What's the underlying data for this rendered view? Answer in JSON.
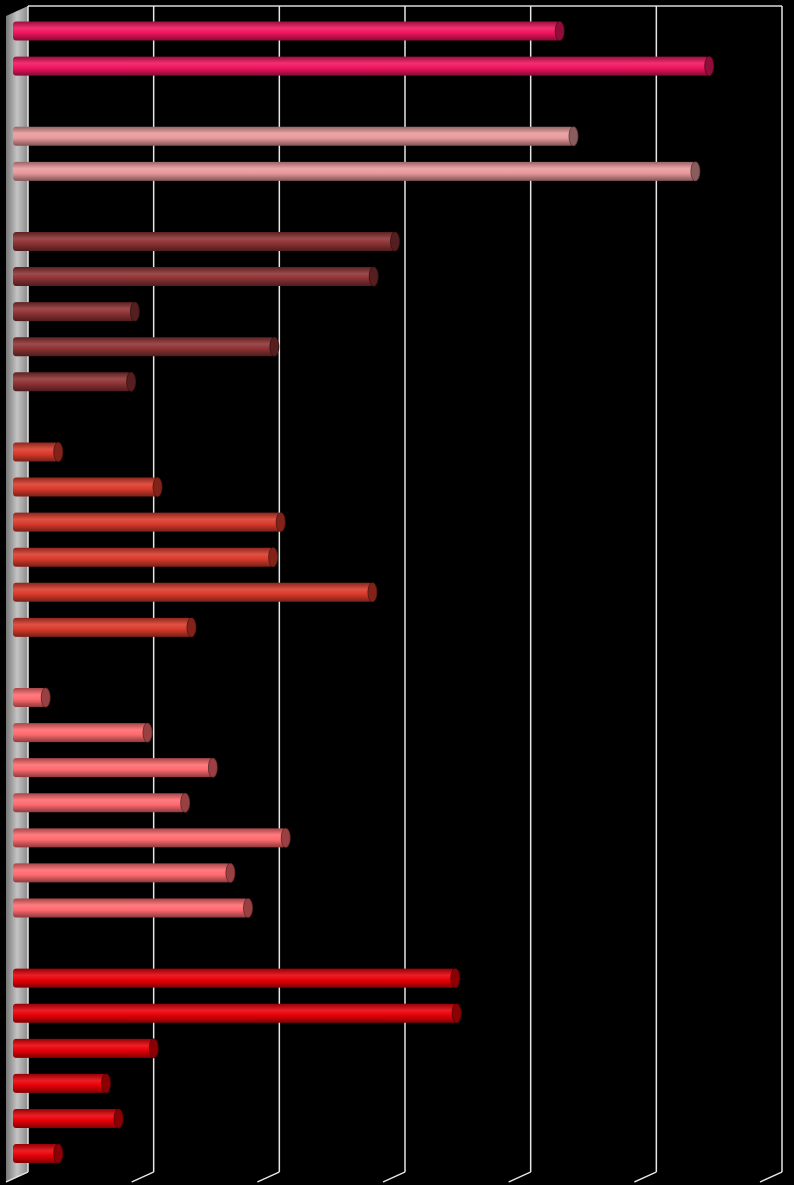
{
  "chart_data": {
    "type": "bar",
    "orientation": "horizontal",
    "style": "3d-cylinder",
    "background": "#000000",
    "grid": true,
    "xlim": [
      0,
      6
    ],
    "gridline_count": 6,
    "groups": [
      {
        "color": "#F0145F",
        "values": [
          4.35,
          5.54
        ]
      },
      {
        "color": "#E89A9C",
        "values": [
          4.46,
          5.43
        ]
      },
      {
        "color": "#8E3234",
        "values": [
          3.04,
          2.87,
          0.97,
          2.08,
          0.94
        ]
      },
      {
        "color": "#D93A2B",
        "values": [
          0.36,
          1.15,
          2.13,
          2.07,
          2.86,
          1.42
        ]
      },
      {
        "color": "#FF6A6E",
        "values": [
          0.26,
          1.07,
          1.59,
          1.37,
          2.17,
          1.73,
          1.87
        ]
      },
      {
        "color": "#E80008",
        "values": [
          3.52,
          3.53,
          1.12,
          0.74,
          0.84,
          0.36
        ]
      }
    ]
  }
}
